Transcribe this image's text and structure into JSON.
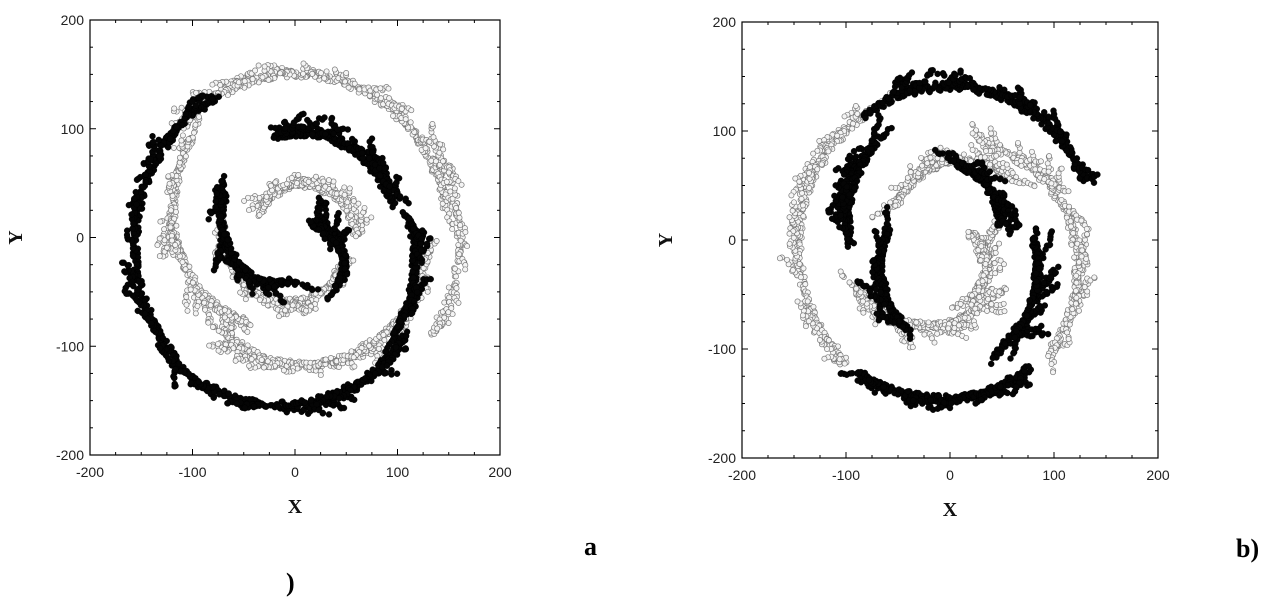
{
  "panel_labels": {
    "a_first": "a",
    "a_second": ")",
    "b": "b)"
  },
  "chart_data": [
    {
      "type": "scatter",
      "panel": "a",
      "title": "",
      "xlabel": "X",
      "ylabel": "Y",
      "xlim": [
        -200,
        200
      ],
      "ylim": [
        -200,
        200
      ],
      "xticks": [
        -200,
        -100,
        0,
        100,
        200
      ],
      "yticks": [
        -200,
        -100,
        0,
        100,
        200
      ],
      "grid": false,
      "series": [
        {
          "marker": "filled-black",
          "values_note_points": []
        },
        {
          "marker": "open-gray",
          "values_note_points": []
        }
      ]
    },
    {
      "type": "scatter",
      "panel": "b",
      "title": "",
      "xlabel": "X",
      "ylabel": "Y",
      "xlim": [
        -200,
        200
      ],
      "ylim": [
        -200,
        200
      ],
      "xticks": [
        -200,
        -100,
        0,
        100,
        200
      ],
      "yticks": [
        -200,
        -100,
        0,
        100,
        200
      ],
      "grid": false,
      "series": [
        {
          "marker": "filled-black",
          "values_note_points": []
        },
        {
          "marker": "open-gray",
          "values_note_points": []
        }
      ]
    }
  ]
}
